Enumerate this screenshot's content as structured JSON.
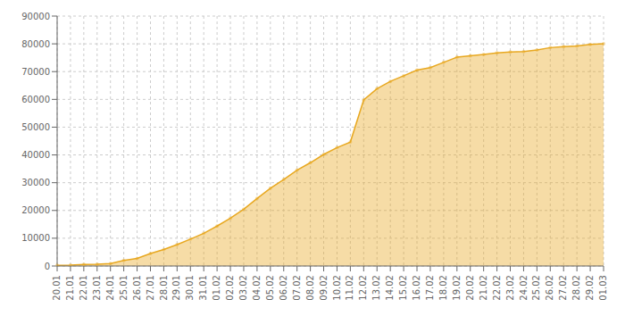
{
  "chart_data": {
    "type": "area",
    "categories": [
      "20.01",
      "21.01",
      "22.01",
      "23.01",
      "24.01",
      "25.01",
      "26.01",
      "27.01",
      "28.01",
      "29.01",
      "30.01",
      "31.01",
      "01.02",
      "02.02",
      "03.02",
      "04.02",
      "05.02",
      "06.02",
      "07.02",
      "08.02",
      "09.02",
      "10.02",
      "11.02",
      "12.02",
      "13.02",
      "14.02",
      "15.02",
      "16.02",
      "17.02",
      "18.02",
      "19.02",
      "20.02",
      "21.02",
      "22.02",
      "23.02",
      "24.02",
      "25.02",
      "26.02",
      "27.02",
      "28.02",
      "29.02",
      "01.03"
    ],
    "values": [
      278,
      326,
      547,
      639,
      916,
      1979,
      2744,
      4515,
      5974,
      7711,
      9692,
      11791,
      14380,
      17205,
      20438,
      24324,
      28018,
      31161,
      34546,
      37198,
      40171,
      42638,
      44653,
      59804,
      63851,
      66492,
      68500,
      70548,
      71429,
      73332,
      75184,
      75700,
      76166,
      76769,
      77041,
      77262,
      77780,
      78630,
      78959,
      79251,
      79827,
      80026
    ],
    "color": "#E8A820",
    "marker": "circle",
    "ylim": [
      0,
      90000
    ],
    "yticks": [
      0,
      10000,
      20000,
      30000,
      40000,
      50000,
      60000,
      70000,
      80000,
      90000
    ],
    "grid": true
  }
}
